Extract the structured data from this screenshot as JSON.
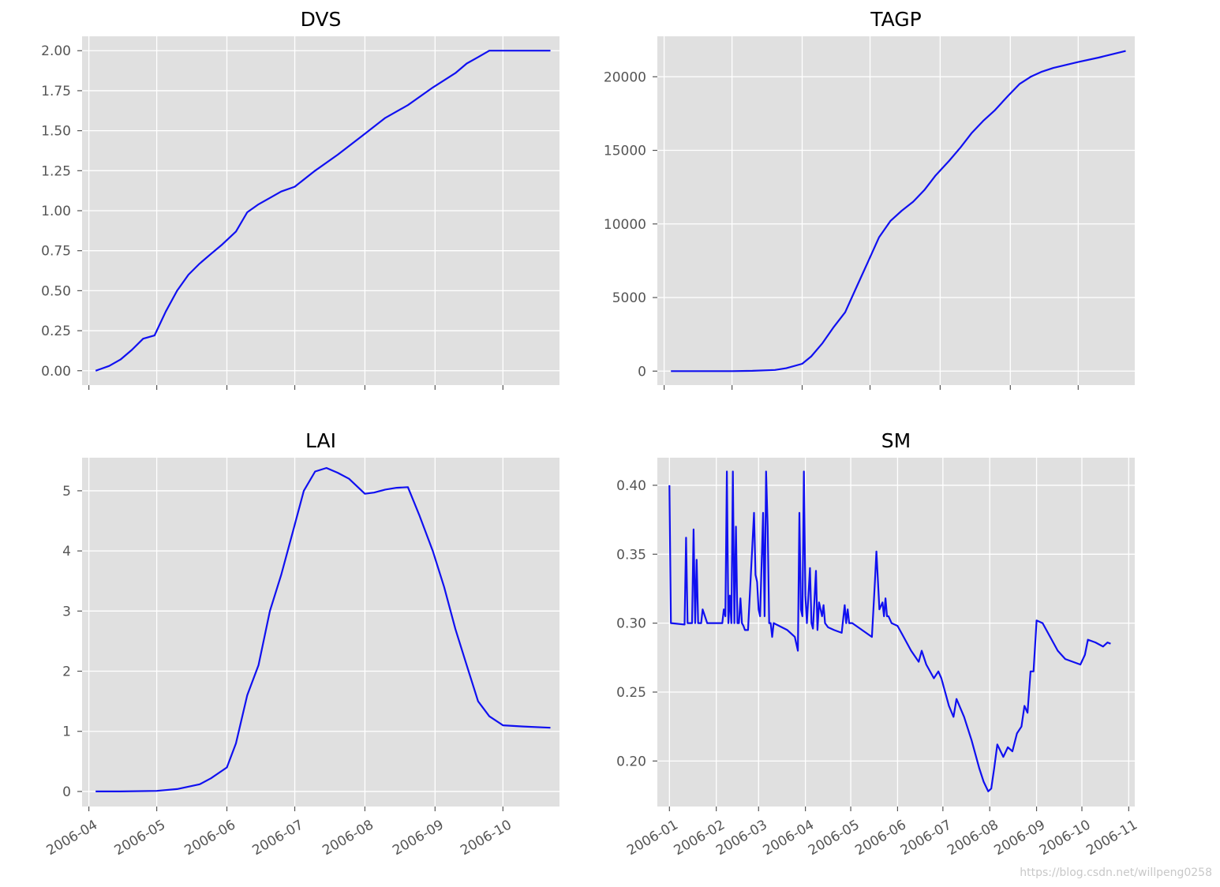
{
  "watermark": "https://blog.csdn.net/willpeng0258",
  "colors": {
    "line": "#1010f0",
    "panel_bg": "#e0e0e0",
    "grid": "#ffffff"
  },
  "chart_data": [
    {
      "type": "line",
      "title": "DVS",
      "grid": true,
      "x_type": "date",
      "xlim": [
        "2006-03-29",
        "2006-10-26"
      ],
      "ylim": [
        -0.09,
        2.09
      ],
      "yticks": [
        0.0,
        0.25,
        0.5,
        0.75,
        1.0,
        1.25,
        1.5,
        1.75,
        2.0
      ],
      "ytick_labels": [
        "0.00",
        "0.25",
        "0.50",
        "0.75",
        "1.00",
        "1.25",
        "1.50",
        "1.75",
        "2.00"
      ],
      "xticks": [
        "2006-04-01",
        "2006-05-01",
        "2006-06-01",
        "2006-07-01",
        "2006-08-01",
        "2006-09-01",
        "2006-10-01"
      ],
      "xtick_labels": [
        "",
        "",
        "",
        "",
        "",
        "",
        ""
      ],
      "series": [
        {
          "x": [
            "2006-04-04",
            "2006-04-10",
            "2006-04-15",
            "2006-04-20",
            "2006-04-25",
            "2006-04-30",
            "2006-05-05",
            "2006-05-10",
            "2006-05-15",
            "2006-05-20",
            "2006-05-25",
            "2006-05-30",
            "2006-06-05",
            "2006-06-10",
            "2006-06-15",
            "2006-06-20",
            "2006-06-25",
            "2006-07-01",
            "2006-07-10",
            "2006-07-20",
            "2006-07-31",
            "2006-08-10",
            "2006-08-20",
            "2006-08-31",
            "2006-09-10",
            "2006-09-15",
            "2006-09-20",
            "2006-09-25",
            "2006-10-05",
            "2006-10-15",
            "2006-10-22"
          ],
          "y": [
            0.0,
            0.03,
            0.07,
            0.13,
            0.2,
            0.22,
            0.37,
            0.5,
            0.6,
            0.67,
            0.73,
            0.79,
            0.87,
            0.99,
            1.04,
            1.08,
            1.12,
            1.15,
            1.25,
            1.35,
            1.47,
            1.58,
            1.66,
            1.77,
            1.86,
            1.92,
            1.96,
            2.0,
            2.0,
            2.0,
            2.0
          ]
        }
      ]
    },
    {
      "type": "line",
      "title": "TAGP",
      "grid": true,
      "x_type": "date",
      "xlim": [
        "2006-03-29",
        "2006-10-26"
      ],
      "ylim": [
        -950,
        22750
      ],
      "yticks": [
        0,
        5000,
        10000,
        15000,
        20000
      ],
      "ytick_labels": [
        "0",
        "5000",
        "10000",
        "15000",
        "20000"
      ],
      "xticks": [
        "2006-04-01",
        "2006-05-01",
        "2006-06-01",
        "2006-07-01",
        "2006-08-01",
        "2006-09-01",
        "2006-10-01"
      ],
      "xtick_labels": [
        "",
        "",
        "",
        "",
        "",
        "",
        ""
      ],
      "series": [
        {
          "x": [
            "2006-04-04",
            "2006-04-20",
            "2006-05-01",
            "2006-05-10",
            "2006-05-20",
            "2006-05-25",
            "2006-06-01",
            "2006-06-05",
            "2006-06-10",
            "2006-06-15",
            "2006-06-20",
            "2006-06-25",
            "2006-06-30",
            "2006-07-05",
            "2006-07-10",
            "2006-07-15",
            "2006-07-20",
            "2006-07-25",
            "2006-07-30",
            "2006-08-05",
            "2006-08-10",
            "2006-08-15",
            "2006-08-20",
            "2006-08-25",
            "2006-08-31",
            "2006-09-05",
            "2006-09-10",
            "2006-09-15",
            "2006-09-20",
            "2006-10-01",
            "2006-10-10",
            "2006-10-22"
          ],
          "y": [
            0,
            0,
            0,
            20,
            80,
            200,
            500,
            1000,
            1900,
            3000,
            4000,
            5700,
            7400,
            9100,
            10200,
            10900,
            11500,
            12300,
            13300,
            14300,
            15200,
            16200,
            17000,
            17700,
            18700,
            19500,
            20000,
            20350,
            20600,
            21000,
            21300,
            21750
          ]
        }
      ]
    },
    {
      "type": "line",
      "title": "LAI",
      "grid": true,
      "x_type": "date",
      "xlim": [
        "2006-03-29",
        "2006-10-26"
      ],
      "ylim": [
        -0.25,
        5.55
      ],
      "yticks": [
        0,
        1,
        2,
        3,
        4,
        5
      ],
      "ytick_labels": [
        "0",
        "1",
        "2",
        "3",
        "4",
        "5"
      ],
      "xticks": [
        "2006-04-01",
        "2006-05-01",
        "2006-06-01",
        "2006-07-01",
        "2006-08-01",
        "2006-09-01",
        "2006-10-01"
      ],
      "xtick_labels": [
        "2006-04",
        "2006-05",
        "2006-06",
        "2006-07",
        "2006-08",
        "2006-09",
        "2006-10"
      ],
      "series": [
        {
          "x": [
            "2006-04-04",
            "2006-04-15",
            "2006-05-01",
            "2006-05-10",
            "2006-05-20",
            "2006-05-25",
            "2006-06-01",
            "2006-06-05",
            "2006-06-10",
            "2006-06-15",
            "2006-06-20",
            "2006-06-25",
            "2006-06-30",
            "2006-07-05",
            "2006-07-10",
            "2006-07-15",
            "2006-07-20",
            "2006-07-25",
            "2006-08-01",
            "2006-08-05",
            "2006-08-10",
            "2006-08-15",
            "2006-08-20",
            "2006-08-25",
            "2006-08-31",
            "2006-09-05",
            "2006-09-10",
            "2006-09-15",
            "2006-09-20",
            "2006-09-25",
            "2006-10-01",
            "2006-10-10",
            "2006-10-22"
          ],
          "y": [
            0.0,
            0.0,
            0.01,
            0.04,
            0.12,
            0.22,
            0.4,
            0.8,
            1.6,
            2.1,
            3.0,
            3.6,
            4.3,
            5.0,
            5.32,
            5.38,
            5.3,
            5.2,
            4.95,
            4.97,
            5.02,
            5.05,
            5.06,
            4.6,
            4.0,
            3.4,
            2.7,
            2.1,
            1.5,
            1.25,
            1.1,
            1.08,
            1.06
          ]
        }
      ]
    },
    {
      "type": "line",
      "title": "SM",
      "grid": true,
      "x_type": "date",
      "xlim": [
        "2005-12-24",
        "2006-11-05"
      ],
      "ylim": [
        0.167,
        0.42
      ],
      "yticks": [
        0.2,
        0.25,
        0.3,
        0.35,
        0.4
      ],
      "ytick_labels": [
        "0.20",
        "0.25",
        "0.30",
        "0.35",
        "0.40"
      ],
      "xticks": [
        "2006-01-01",
        "2006-02-01",
        "2006-03-01",
        "2006-04-01",
        "2006-05-01",
        "2006-06-01",
        "2006-07-01",
        "2006-08-01",
        "2006-09-01",
        "2006-10-01",
        "2006-11-01"
      ],
      "xtick_labels": [
        "2006-01",
        "2006-02",
        "2006-03",
        "2006-04",
        "2006-05",
        "2006-06",
        "2006-07",
        "2006-08",
        "2006-09",
        "2006-10",
        "2006-11"
      ],
      "series": [
        {
          "x": [
            "2006-01-01",
            "2006-01-02",
            "2006-01-11",
            "2006-01-12",
            "2006-01-13",
            "2006-01-16",
            "2006-01-17",
            "2006-01-18",
            "2006-01-19",
            "2006-01-20",
            "2006-01-22",
            "2006-01-23",
            "2006-01-26",
            "2006-02-05",
            "2006-02-06",
            "2006-02-07",
            "2006-02-08",
            "2006-02-09",
            "2006-02-10",
            "2006-02-11",
            "2006-02-12",
            "2006-02-13",
            "2006-02-14",
            "2006-02-15",
            "2006-02-16",
            "2006-02-17",
            "2006-02-18",
            "2006-02-19",
            "2006-02-20",
            "2006-02-22",
            "2006-02-26",
            "2006-02-27",
            "2006-02-28",
            "2006-03-01",
            "2006-03-02",
            "2006-03-04",
            "2006-03-05",
            "2006-03-06",
            "2006-03-07",
            "2006-03-08",
            "2006-03-09",
            "2006-03-10",
            "2006-03-11",
            "2006-03-20",
            "2006-03-25",
            "2006-03-27",
            "2006-03-28",
            "2006-03-29",
            "2006-03-30",
            "2006-03-31",
            "2006-04-01",
            "2006-04-02",
            "2006-04-04",
            "2006-04-05",
            "2006-04-06",
            "2006-04-08",
            "2006-04-09",
            "2006-04-10",
            "2006-04-12",
            "2006-04-13",
            "2006-04-14",
            "2006-04-16",
            "2006-04-20",
            "2006-04-25",
            "2006-04-27",
            "2006-04-28",
            "2006-04-29",
            "2006-04-30",
            "2006-05-02",
            "2006-05-15",
            "2006-05-17",
            "2006-05-18",
            "2006-05-20",
            "2006-05-22",
            "2006-05-23",
            "2006-05-24",
            "2006-05-25",
            "2006-05-26",
            "2006-05-28",
            "2006-06-01",
            "2006-06-05",
            "2006-06-10",
            "2006-06-15",
            "2006-06-17",
            "2006-06-20",
            "2006-06-25",
            "2006-06-28",
            "2006-06-30",
            "2006-07-05",
            "2006-07-08",
            "2006-07-10",
            "2006-07-15",
            "2006-07-20",
            "2006-07-25",
            "2006-07-28",
            "2006-07-31",
            "2006-08-02",
            "2006-08-04",
            "2006-08-06",
            "2006-08-10",
            "2006-08-13",
            "2006-08-16",
            "2006-08-19",
            "2006-08-22",
            "2006-08-24",
            "2006-08-26",
            "2006-08-28",
            "2006-08-30",
            "2006-09-01",
            "2006-09-05",
            "2006-09-10",
            "2006-09-15",
            "2006-09-20",
            "2006-09-25",
            "2006-09-30",
            "2006-10-03",
            "2006-10-05",
            "2006-10-10",
            "2006-10-15",
            "2006-10-18",
            "2006-10-20"
          ],
          "y": [
            0.4,
            0.3,
            0.299,
            0.362,
            0.3,
            0.3,
            0.368,
            0.3,
            0.346,
            0.3,
            0.3,
            0.31,
            0.3,
            0.3,
            0.31,
            0.305,
            0.41,
            0.3,
            0.32,
            0.3,
            0.41,
            0.3,
            0.37,
            0.3,
            0.3,
            0.318,
            0.3,
            0.298,
            0.295,
            0.295,
            0.38,
            0.335,
            0.33,
            0.31,
            0.305,
            0.38,
            0.305,
            0.41,
            0.37,
            0.3,
            0.3,
            0.29,
            0.3,
            0.295,
            0.29,
            0.28,
            0.38,
            0.31,
            0.305,
            0.41,
            0.32,
            0.3,
            0.34,
            0.3,
            0.296,
            0.338,
            0.295,
            0.315,
            0.305,
            0.313,
            0.3,
            0.297,
            0.295,
            0.293,
            0.313,
            0.3,
            0.31,
            0.3,
            0.3,
            0.29,
            0.33,
            0.352,
            0.31,
            0.315,
            0.305,
            0.318,
            0.305,
            0.305,
            0.3,
            0.298,
            0.29,
            0.28,
            0.272,
            0.28,
            0.27,
            0.26,
            0.265,
            0.26,
            0.24,
            0.232,
            0.245,
            0.232,
            0.215,
            0.195,
            0.185,
            0.178,
            0.18,
            0.195,
            0.212,
            0.203,
            0.21,
            0.207,
            0.22,
            0.225,
            0.24,
            0.235,
            0.265,
            0.265,
            0.302,
            0.3,
            0.29,
            0.28,
            0.274,
            0.272,
            0.27,
            0.277,
            0.288,
            0.286,
            0.283,
            0.286,
            0.285
          ]
        }
      ]
    }
  ]
}
